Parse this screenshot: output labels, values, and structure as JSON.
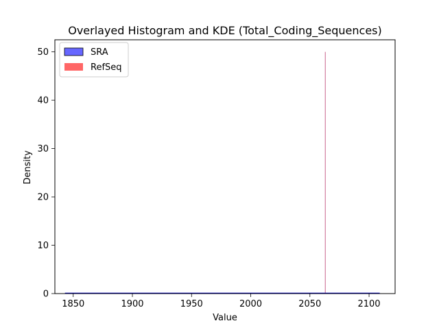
{
  "chart_data": {
    "type": "histogram",
    "title": "Overlayed Histogram and KDE (Total_Coding_Sequences)",
    "xlabel": "Value",
    "ylabel": "Density",
    "xlim": [
      1834.5,
      2122
    ],
    "ylim": [
      0,
      52.5
    ],
    "xticks": [
      1850,
      1900,
      1950,
      2000,
      2050,
      2100
    ],
    "yticks": [
      0,
      10,
      20,
      30,
      40,
      50
    ],
    "grid": false,
    "legend_position": "top-left",
    "series": [
      {
        "name": "SRA",
        "kind": "histogram+kde",
        "color": "#0000ff",
        "fill_alpha": 0.6,
        "edge_color": "#000000",
        "kde_x_range": [
          1843,
          2109
        ],
        "kde_peak_density": 0.0
      },
      {
        "name": "RefSeq",
        "kind": "histogram+kde",
        "color": "#ff0000",
        "fill_alpha": 0.6,
        "spike_x": 2063,
        "spike_density": 50
      }
    ]
  }
}
